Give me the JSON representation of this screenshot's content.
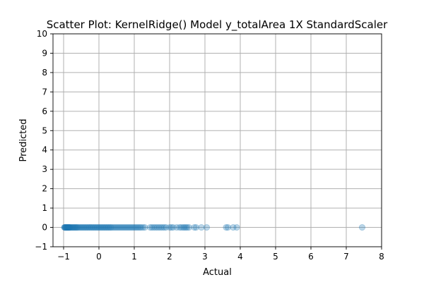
{
  "chart_data": {
    "type": "scatter",
    "title": "Scatter Plot: KernelRidge() Model y_totalArea 1X StandardScaler",
    "xlabel": "Actual",
    "ylabel": "Predicted",
    "xlim": [
      -1.3,
      8
    ],
    "ylim": [
      -1,
      10
    ],
    "xticks": [
      "−1",
      "0",
      "1",
      "2",
      "3",
      "4",
      "5",
      "6",
      "7",
      "8"
    ],
    "yticks": [
      "−1",
      "0",
      "1",
      "2",
      "3",
      "4",
      "5",
      "6",
      "7",
      "8",
      "9",
      "10"
    ],
    "grid": true,
    "marker_color": "#1f77b4",
    "marker_alpha": 0.3,
    "x": [
      -0.98,
      -0.97,
      -0.96,
      -0.95,
      -0.94,
      -0.93,
      -0.92,
      -0.91,
      -0.9,
      -0.89,
      -0.88,
      -0.87,
      -0.86,
      -0.85,
      -0.84,
      -0.83,
      -0.82,
      -0.8,
      -0.78,
      -0.76,
      -0.74,
      -0.72,
      -0.7,
      -0.68,
      -0.66,
      -0.64,
      -0.62,
      -0.6,
      -0.57,
      -0.54,
      -0.51,
      -0.48,
      -0.45,
      -0.42,
      -0.39,
      -0.36,
      -0.33,
      -0.3,
      -0.27,
      -0.24,
      -0.21,
      -0.18,
      -0.15,
      -0.12,
      -0.09,
      -0.06,
      -0.03,
      0.0,
      0.03,
      0.06,
      0.09,
      0.12,
      0.15,
      0.18,
      0.21,
      0.24,
      0.27,
      0.3,
      0.33,
      0.36,
      0.4,
      0.44,
      0.48,
      0.52,
      0.56,
      0.6,
      0.64,
      0.68,
      0.72,
      0.76,
      0.8,
      0.84,
      0.88,
      0.92,
      0.96,
      1.0,
      1.04,
      1.08,
      1.12,
      1.16,
      1.2,
      1.25,
      1.3,
      1.45,
      1.5,
      1.55,
      1.6,
      1.65,
      1.7,
      1.75,
      1.8,
      1.85,
      1.9,
      2.0,
      2.05,
      2.1,
      2.2,
      2.28,
      2.33,
      2.38,
      2.42,
      2.46,
      2.5,
      2.55,
      2.7,
      2.75,
      2.9,
      3.05,
      3.6,
      3.65,
      3.8,
      3.9,
      7.45
    ],
    "y": [
      0,
      0,
      0,
      0,
      0,
      0,
      0,
      0,
      0,
      0,
      0,
      0,
      0,
      0,
      0,
      0,
      0,
      0,
      0,
      0,
      0,
      0,
      0,
      0,
      0,
      0,
      0,
      0,
      0,
      0,
      0,
      0,
      0,
      0,
      0,
      0,
      0,
      0,
      0,
      0,
      0,
      0,
      0,
      0,
      0,
      0,
      0,
      0,
      0,
      0,
      0,
      0,
      0,
      0,
      0,
      0,
      0,
      0,
      0,
      0,
      0,
      0,
      0,
      0,
      0,
      0,
      0,
      0,
      0,
      0,
      0,
      0,
      0,
      0,
      0,
      0,
      0,
      0,
      0,
      0,
      0,
      0,
      0,
      0,
      0,
      0,
      0,
      0,
      0,
      0,
      0,
      0,
      0,
      0,
      0,
      0,
      0,
      0,
      0,
      0,
      0,
      0,
      0,
      0,
      0,
      0,
      0,
      0,
      0,
      0,
      0,
      0,
      0
    ]
  }
}
